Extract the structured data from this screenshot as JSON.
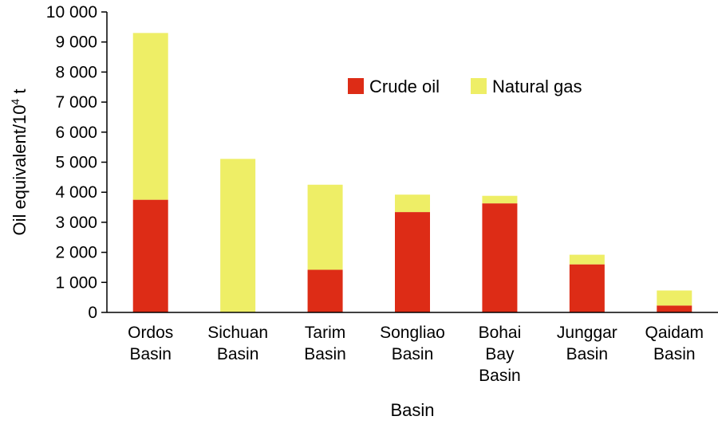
{
  "chart_data": {
    "type": "bar",
    "stacked": true,
    "categories": [
      [
        "Ordos",
        "Basin"
      ],
      [
        "Sichuan",
        "Basin"
      ],
      [
        "Tarim",
        "Basin"
      ],
      [
        "Songliao",
        "Basin"
      ],
      [
        "Bohai",
        "Bay",
        "Basin"
      ],
      [
        "Junggar",
        "Basin"
      ],
      [
        "Qaidam",
        "Basin"
      ]
    ],
    "series": [
      {
        "name": "Crude oil",
        "color": "#dd2c16",
        "values": [
          3750,
          0,
          1420,
          3340,
          3630,
          1600,
          230
        ]
      },
      {
        "name": "Natural gas",
        "color": "#eeee66",
        "values": [
          5550,
          5110,
          2830,
          580,
          250,
          320,
          500
        ]
      }
    ],
    "xlabel": "Basin",
    "ylabel_main": "Oil equivalent/10",
    "ylabel_sup": "4",
    "ylabel_unit": " t",
    "ylim": [
      0,
      10000
    ],
    "yticks": [
      0,
      1000,
      2000,
      3000,
      4000,
      5000,
      6000,
      7000,
      8000,
      9000,
      10000
    ],
    "ytick_labels": [
      "0",
      "1 000",
      "2 000",
      "3 000",
      "4 000",
      "5 000",
      "6 000",
      "7 000",
      "8 000",
      "9 000",
      "10 000"
    ],
    "grid": false,
    "legend_position": "top-right"
  }
}
